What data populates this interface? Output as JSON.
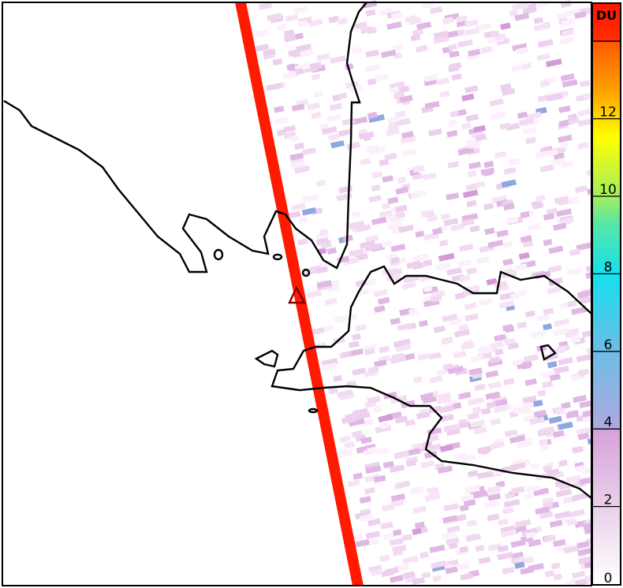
{
  "map": {
    "swath_color": "#ff1a00",
    "marker": {
      "type": "triangle",
      "color": "#8b0000"
    },
    "coastline_color": "#000000"
  },
  "colorbar": {
    "unit": "DU",
    "range": [
      0,
      15
    ],
    "ticks": [
      {
        "value": 0,
        "label": "0"
      },
      {
        "value": 2,
        "label": "2"
      },
      {
        "value": 4,
        "label": "4"
      },
      {
        "value": 6,
        "label": "6"
      },
      {
        "value": 8,
        "label": "8"
      },
      {
        "value": 10,
        "label": "10"
      },
      {
        "value": 12,
        "label": "12"
      },
      {
        "value": 14,
        "label": ""
      }
    ],
    "colors": [
      "#ffffff",
      "#e8c8e8",
      "#d59ad8",
      "#a8a8e0",
      "#6fb8e6",
      "#12e0ee",
      "#60e8a0",
      "#c8f040",
      "#ffff00",
      "#ffb000",
      "#ff6000",
      "#ff2000"
    ]
  }
}
